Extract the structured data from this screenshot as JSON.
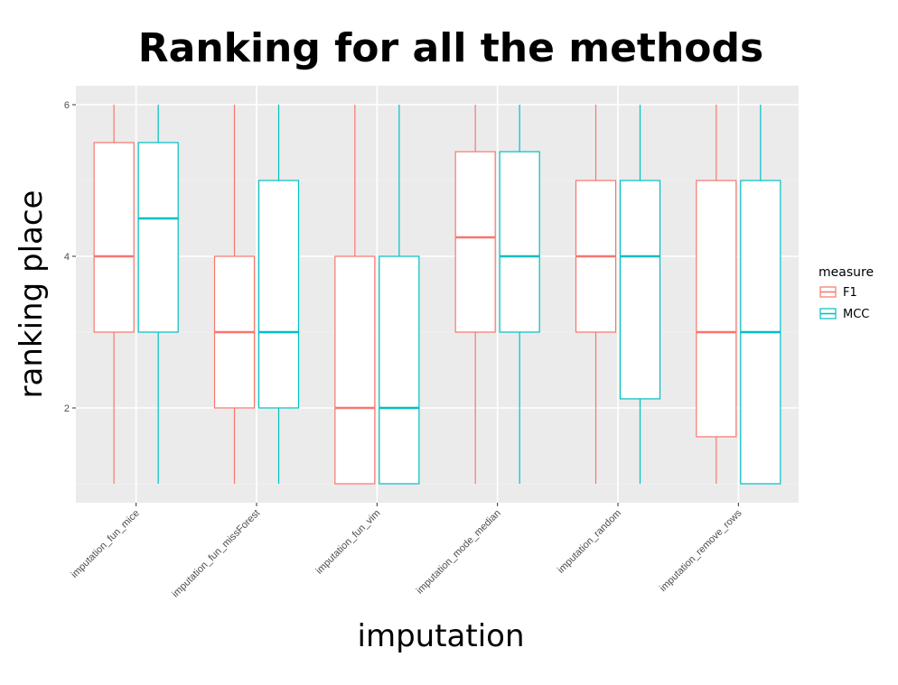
{
  "chart_data": {
    "type": "boxplot",
    "title": "Ranking for all the methods",
    "xlabel": "imputation",
    "ylabel": "ranking place",
    "ylim": [
      0.75,
      6.25
    ],
    "yticks": [
      2,
      4,
      6
    ],
    "grid": true,
    "legend": {
      "title": "measure",
      "position": "right"
    },
    "categories": [
      "imputation_fun_mice",
      "imputation_fun_missForest",
      "imputation_fun_vim",
      "imputation_mode_median",
      "imputation_random",
      "imputation_remove_rows"
    ],
    "series": [
      {
        "name": "F1",
        "color": "#F8766D",
        "boxes": [
          {
            "min": 1,
            "q1": 3,
            "median": 4,
            "q3": 5.5,
            "max": 6
          },
          {
            "min": 1,
            "q1": 2,
            "median": 3,
            "q3": 4,
            "max": 6
          },
          {
            "min": 1,
            "q1": 1,
            "median": 2,
            "q3": 4,
            "max": 6
          },
          {
            "min": 1,
            "q1": 3,
            "median": 4.25,
            "q3": 5.38,
            "max": 6
          },
          {
            "min": 1,
            "q1": 3,
            "median": 4,
            "q3": 5,
            "max": 6
          },
          {
            "min": 1,
            "q1": 1.62,
            "median": 3,
            "q3": 5,
            "max": 6
          }
        ]
      },
      {
        "name": "MCC",
        "color": "#00BFC4",
        "boxes": [
          {
            "min": 1,
            "q1": 3,
            "median": 4.5,
            "q3": 5.5,
            "max": 6
          },
          {
            "min": 1,
            "q1": 2,
            "median": 3,
            "q3": 5,
            "max": 6
          },
          {
            "min": 1,
            "q1": 1,
            "median": 2,
            "q3": 4,
            "max": 6
          },
          {
            "min": 1,
            "q1": 3,
            "median": 4,
            "q3": 5.38,
            "max": 6
          },
          {
            "min": 1,
            "q1": 2.12,
            "median": 4,
            "q3": 5,
            "max": 6
          },
          {
            "min": 1,
            "q1": 1,
            "median": 3,
            "q3": 5,
            "max": 6
          }
        ]
      }
    ]
  }
}
